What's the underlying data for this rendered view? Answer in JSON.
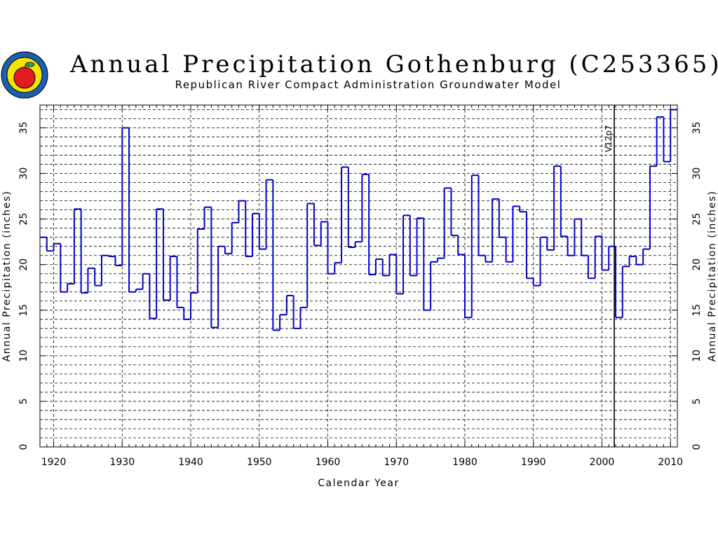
{
  "chart_data": {
    "type": "line",
    "step": true,
    "title": "Annual Precipitation Gothenburg (C253365)",
    "subtitle": "Republican River Compact Administration Groundwater Model",
    "xlabel": "Calendar Year",
    "ylabel": "Annual Precipitation (inches)",
    "xlim": [
      1918,
      2011
    ],
    "ylim": [
      0,
      37.5
    ],
    "xticks": [
      1920,
      1930,
      1940,
      1950,
      1960,
      1970,
      1980,
      1990,
      2000,
      2010
    ],
    "yticks": [
      0,
      5,
      10,
      15,
      20,
      25,
      30,
      35
    ],
    "grid": true,
    "annotation": {
      "text": "V12p7",
      "x": 2001
    },
    "series": [
      {
        "color": "#0000cc",
        "x": [
          1918,
          1919,
          1920,
          1921,
          1922,
          1923,
          1924,
          1925,
          1926,
          1927,
          1928,
          1929,
          1930,
          1931,
          1932,
          1933,
          1934,
          1935,
          1936,
          1937,
          1938,
          1939,
          1940,
          1941,
          1942,
          1943,
          1944,
          1945,
          1946,
          1947,
          1948,
          1949,
          1950,
          1951,
          1952,
          1953,
          1954,
          1955,
          1956,
          1957,
          1958,
          1959,
          1960,
          1961,
          1962,
          1963,
          1964,
          1965,
          1966,
          1967,
          1968,
          1969,
          1970,
          1971,
          1972,
          1973,
          1974,
          1975,
          1976,
          1977,
          1978,
          1979,
          1980,
          1981,
          1982,
          1983,
          1984,
          1985,
          1986,
          1987,
          1988,
          1989,
          1990,
          1991,
          1992,
          1993,
          1994,
          1995,
          1996,
          1997,
          1998,
          1999,
          2000,
          2001,
          2002,
          2003,
          2004,
          2005,
          2006,
          2007,
          2008,
          2009,
          2010
        ],
        "y": [
          23.0,
          21.5,
          22.3,
          17.0,
          17.9,
          26.1,
          16.9,
          19.6,
          17.7,
          21.0,
          20.9,
          19.9,
          35.0,
          17.0,
          17.3,
          19.0,
          14.1,
          26.1,
          16.1,
          20.9,
          15.3,
          14.0,
          16.9,
          23.9,
          26.3,
          13.1,
          22.0,
          21.2,
          24.6,
          27.0,
          20.9,
          25.6,
          21.7,
          29.3,
          12.8,
          14.5,
          16.6,
          13.0,
          15.3,
          26.7,
          22.1,
          24.7,
          19.0,
          20.2,
          30.7,
          21.9,
          22.5,
          29.9,
          18.9,
          20.6,
          18.8,
          21.1,
          16.8,
          25.4,
          18.8,
          25.1,
          15.0,
          20.3,
          20.7,
          28.4,
          23.2,
          21.1,
          14.2,
          29.8,
          21.0,
          20.3,
          27.2,
          23.0,
          20.3,
          26.4,
          25.8,
          18.5,
          17.7,
          23.0,
          21.6,
          30.8,
          23.1,
          21.0,
          25.0,
          21.0,
          18.5,
          23.1,
          19.4,
          22.0,
          14.2,
          19.8,
          20.9,
          20.0,
          21.7,
          30.8,
          36.2,
          31.3,
          37.0
        ]
      }
    ]
  }
}
